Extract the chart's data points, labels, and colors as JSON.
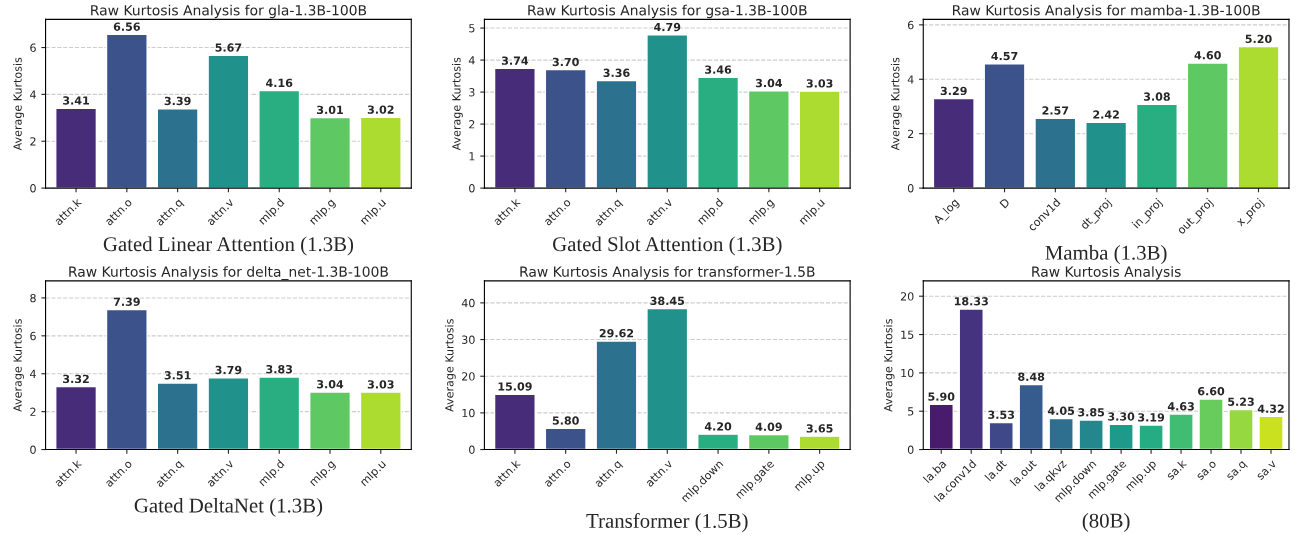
{
  "chart_data": [
    {
      "type": "bar",
      "title": "Raw Kurtosis Analysis for gla-1.3B-100B",
      "xlabel": "Gated Linear Attention (1.3B)",
      "ylabel": "Average Kurtosis",
      "categories": [
        "attn.k",
        "attn.o",
        "attn.q",
        "attn.v",
        "mlp.d",
        "mlp.g",
        "mlp.u"
      ],
      "values": [
        3.41,
        6.56,
        3.39,
        5.67,
        4.16,
        3.01,
        3.02
      ],
      "value_labels": [
        "3.41",
        "6.56",
        "3.39",
        "5.67",
        "4.16",
        "3.01",
        "3.02"
      ],
      "colors": [
        "#472c7a",
        "#3b528b",
        "#2c728e",
        "#21918c",
        "#28ae80",
        "#5ec962",
        "#addc30"
      ],
      "ylim": [
        0,
        7.2
      ],
      "yticks": [
        0,
        2,
        4,
        6
      ],
      "grid": "y"
    },
    {
      "type": "bar",
      "title": "Raw Kurtosis Analysis for gsa-1.3B-100B",
      "xlabel": "Gated Slot Attention (1.3B)",
      "ylabel": "Average Kurtosis",
      "categories": [
        "attn.k",
        "attn.o",
        "attn.q",
        "attn.v",
        "mlp.d",
        "mlp.g",
        "mlp.u"
      ],
      "values": [
        3.74,
        3.7,
        3.36,
        4.79,
        3.46,
        3.04,
        3.03
      ],
      "value_labels": [
        "3.74",
        "3.70",
        "3.36",
        "4.79",
        "3.46",
        "3.04",
        "3.03"
      ],
      "colors": [
        "#472c7a",
        "#3b528b",
        "#2c728e",
        "#21918c",
        "#28ae80",
        "#5ec962",
        "#addc30"
      ],
      "ylim": [
        0,
        5.27
      ],
      "yticks": [
        0,
        1,
        2,
        3,
        4,
        5
      ],
      "grid": "y"
    },
    {
      "type": "bar",
      "title": "Raw Kurtosis Analysis for mamba-1.3B-100B",
      "xlabel": "Mamba (1.3B)",
      "ylabel": "Average Kurtosis",
      "categories": [
        "A_log",
        "D",
        "conv1d",
        "dt_proj",
        "in_proj",
        "out_proj",
        "x_proj"
      ],
      "values": [
        3.29,
        4.57,
        2.57,
        2.42,
        3.08,
        4.6,
        5.2
      ],
      "value_labels": [
        "3.29",
        "4.57",
        "2.57",
        "2.42",
        "3.08",
        "4.60",
        "5.20"
      ],
      "colors": [
        "#472c7a",
        "#3b528b",
        "#2c728e",
        "#21918c",
        "#28ae80",
        "#5ec962",
        "#addc30"
      ],
      "ylim": [
        0,
        6.2
      ],
      "yticks": [
        0,
        2,
        4,
        6
      ],
      "grid": "y"
    },
    {
      "type": "bar",
      "title": "Raw Kurtosis Analysis for delta_net-1.3B-100B",
      "xlabel": "Gated DeltaNet (1.3B)",
      "ylabel": "Average Kurtosis",
      "categories": [
        "attn.k",
        "attn.o",
        "attn.q",
        "attn.v",
        "mlp.d",
        "mlp.g",
        "mlp.u"
      ],
      "values": [
        3.32,
        7.39,
        3.51,
        3.79,
        3.83,
        3.04,
        3.03
      ],
      "value_labels": [
        "3.32",
        "7.39",
        "3.51",
        "3.79",
        "3.83",
        "3.04",
        "3.03"
      ],
      "colors": [
        "#472c7a",
        "#3b528b",
        "#2c728e",
        "#21918c",
        "#28ae80",
        "#5ec962",
        "#addc30"
      ],
      "ylim": [
        0,
        8.9
      ],
      "yticks": [
        0,
        2,
        4,
        6,
        8
      ],
      "grid": "y"
    },
    {
      "type": "bar",
      "title": "Raw Kurtosis Analysis for transformer-1.5B",
      "xlabel": "Transformer (1.5B)",
      "ylabel": "Average Kurtosis",
      "categories": [
        "attn.k",
        "attn.o",
        "attn.q",
        "attn.v",
        "mlp.down",
        "mlp.gate",
        "mlp.up"
      ],
      "values": [
        15.09,
        5.8,
        29.62,
        38.45,
        4.2,
        4.09,
        3.65
      ],
      "value_labels": [
        "15.09",
        "5.80",
        "29.62",
        "38.45",
        "4.20",
        "4.09",
        "3.65"
      ],
      "colors": [
        "#472c7a",
        "#3b528b",
        "#2c728e",
        "#21918c",
        "#28ae80",
        "#5ec962",
        "#addc30"
      ],
      "ylim": [
        0,
        46
      ],
      "yticks": [
        0,
        10,
        20,
        30,
        40
      ],
      "grid": "y"
    },
    {
      "type": "bar",
      "title": "Raw Kurtosis Analysis",
      "xlabel": "(80B)",
      "ylabel": "Average Kurtosis",
      "categories": [
        "la.ba",
        "la.conv1d",
        "la.dt",
        "la.out",
        "la.qkvz",
        "mlp.down",
        "mlp.gate",
        "mlp.up",
        "sa.k",
        "sa.o",
        "sa.q",
        "sa.v"
      ],
      "values": [
        5.9,
        18.33,
        3.53,
        8.48,
        4.05,
        3.85,
        3.3,
        3.19,
        4.63,
        6.6,
        5.23,
        4.32
      ],
      "value_labels": [
        "5.90",
        "18.33",
        "3.53",
        "8.48",
        "4.05",
        "3.85",
        "3.30",
        "3.19",
        "4.63",
        "6.60",
        "5.23",
        "4.32"
      ],
      "colors": [
        "#481b6d",
        "#46337f",
        "#3f4889",
        "#365c8d",
        "#2e6e8e",
        "#24878e",
        "#1f998a",
        "#25ac82",
        "#40bd72",
        "#67cc5c",
        "#95d840",
        "#cae11f"
      ],
      "ylim": [
        0,
        22
      ],
      "yticks": [
        0,
        5,
        10,
        15,
        20
      ],
      "grid": "y"
    }
  ]
}
